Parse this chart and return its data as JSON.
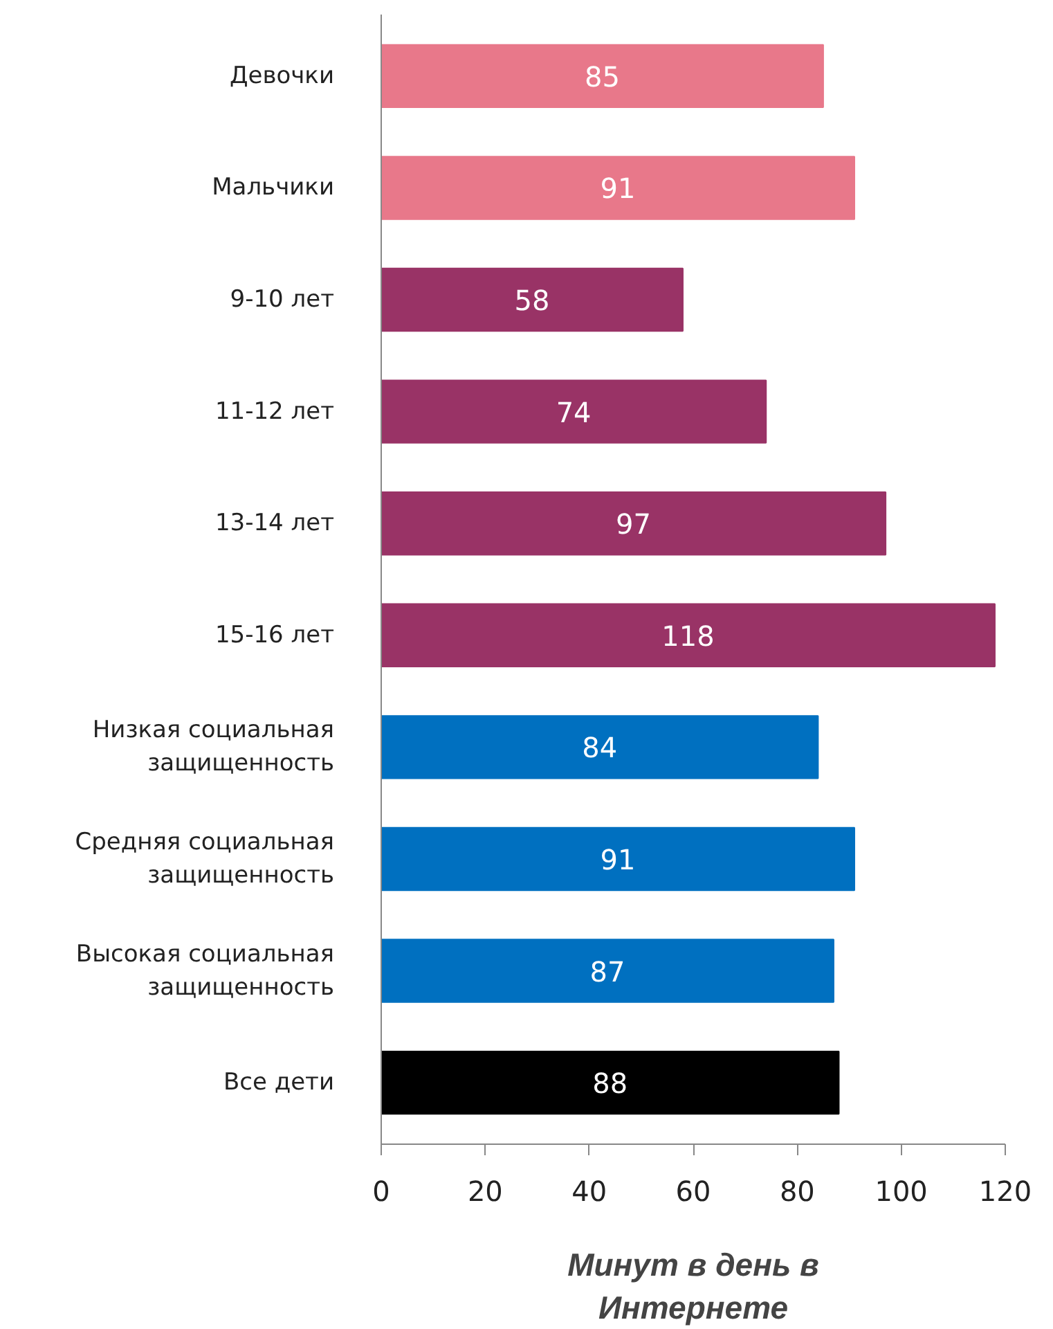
{
  "chart_data": {
    "type": "bar",
    "orientation": "horizontal",
    "xlabel": "Минут в день в Интернете",
    "categories": [
      "Девочки",
      "Мальчики",
      "9-10 лет",
      "11-12 лет",
      "13-14 лет",
      "15-16 лет",
      "Низкая социальная защищенность",
      "Средняя социальная защищенность",
      "Высокая социальная защищенность",
      "Все дети"
    ],
    "values": [
      85,
      91,
      58,
      74,
      97,
      118,
      84,
      91,
      87,
      88
    ],
    "colors": [
      "#e8788a",
      "#e8788a",
      "#993366",
      "#993366",
      "#993366",
      "#993366",
      "#0070c0",
      "#0070c0",
      "#0070c0",
      "#000000"
    ],
    "xlim": [
      0,
      120
    ],
    "xticks": [
      0,
      20,
      40,
      60,
      80,
      100,
      120
    ],
    "data_labels": true,
    "grid": false
  }
}
